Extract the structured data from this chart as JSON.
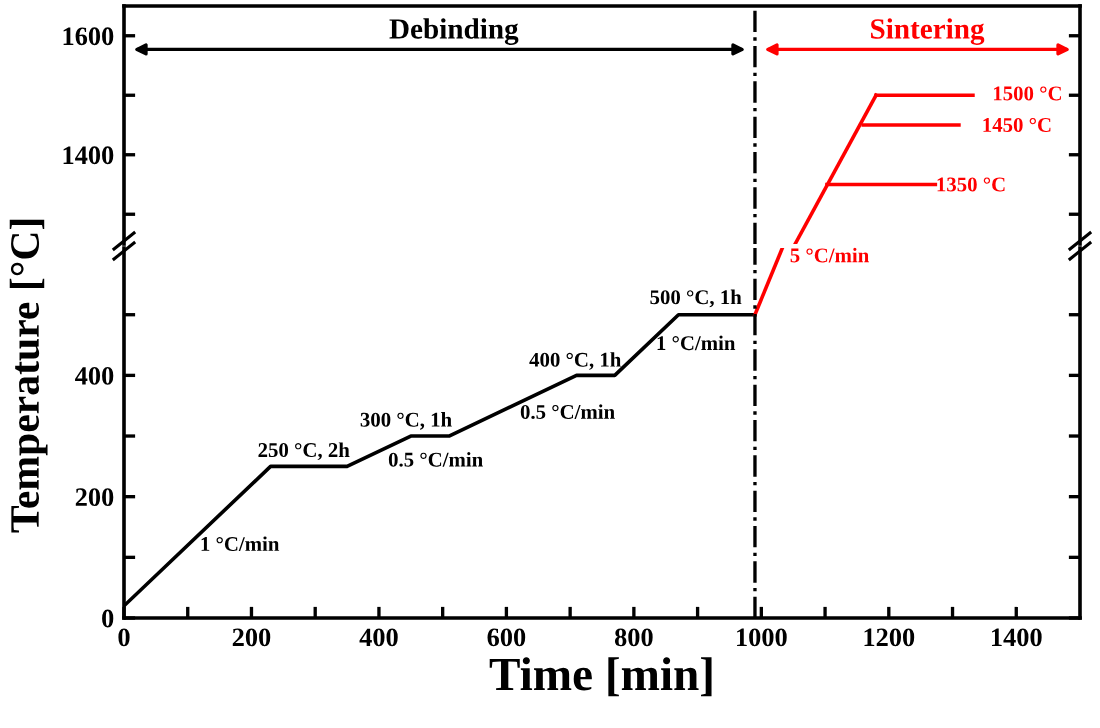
{
  "chart_data": [
    {
      "type": "line",
      "ylabel": "Temperature [°C]",
      "xlim": [
        0,
        1500
      ],
      "ylim": [
        1250,
        1650
      ],
      "yticks": [
        {
          "value": 1300,
          "label": null
        },
        1400,
        {
          "value": 1500,
          "label": null
        },
        1600
      ],
      "tick_labels": "y",
      "grid": false,
      "legend": false,
      "marker": "none",
      "line_style": "solid",
      "series": [
        {
          "color": "#ff0000",
          "x": [
            1053,
            1180
          ],
          "values": [
            1250,
            1500
          ]
        },
        {
          "color": "#ff0000",
          "x": [
            1180,
            1332
          ],
          "values": [
            1500,
            1500
          ]
        },
        {
          "color": "#ff0000",
          "x": [
            1160,
            1310
          ],
          "values": [
            1450,
            1450
          ]
        },
        {
          "color": "#ff0000",
          "x": [
            1103,
            1273
          ],
          "values": [
            1350,
            1350
          ]
        }
      ],
      "ref_lines": [
        {
          "axis": "x",
          "value": 990,
          "color": "#000000",
          "line_style": "dashdot"
        }
      ],
      "annotations": [
        "Debinding",
        "Sintering",
        "1500 °C",
        "1450 °C",
        "1350 °C"
      ]
    },
    {
      "type": "line",
      "xlabel": "Time [min]",
      "xlim": [
        0,
        1500
      ],
      "xticks": [
        0,
        {
          "value": 100,
          "label": null
        },
        200,
        {
          "value": 300,
          "label": null
        },
        400,
        {
          "value": 500,
          "label": null
        },
        600,
        {
          "value": 700,
          "label": null
        },
        800,
        {
          "value": 900,
          "label": null
        },
        1000,
        {
          "value": 1100,
          "label": null
        },
        1200,
        {
          "value": 1300,
          "label": null
        },
        1400
      ],
      "ylim": [
        0,
        610
      ],
      "yticks": [
        0,
        {
          "value": 100,
          "label": null
        },
        200,
        {
          "value": 300,
          "label": null
        },
        400,
        {
          "value": 500,
          "label": null
        }
      ],
      "grid": false,
      "legend": false,
      "marker": "none",
      "line_style": "solid",
      "series": [
        {
          "color": "#000000",
          "x": [
            0,
            230,
            350,
            450,
            510,
            710,
            770,
            870,
            990
          ],
          "values": [
            20,
            250,
            250,
            300,
            300,
            400,
            400,
            500,
            500
          ]
        },
        {
          "color": "#ff0000",
          "x": [
            990,
            1033
          ],
          "values": [
            500,
            610
          ]
        }
      ],
      "ref_lines": [
        {
          "axis": "x",
          "value": 990,
          "color": "#000000",
          "line_style": "dashdot"
        }
      ],
      "annotations": [
        "1 °C/min",
        "250 °C, 2h",
        "300 °C, 1h",
        "0.5 °C/min",
        "400 °C, 1h",
        "0.5 °C/min",
        "500 °C, 1h",
        "1 °C/min",
        "5 °C/min"
      ]
    }
  ]
}
